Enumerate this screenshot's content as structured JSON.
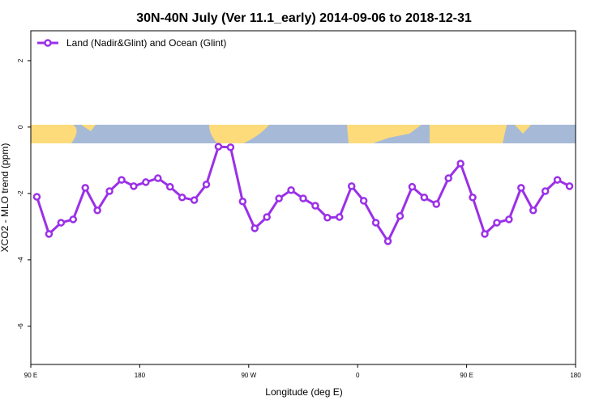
{
  "chart_data": {
    "type": "line",
    "title": "30N-40N July (Ver 11.1_early)   2014-09-06 to 2018-12-31",
    "x_label": "Longitude (deg E)",
    "y_label": "XCO2 - MLO trend (ppm)",
    "x": [
      95,
      105,
      115,
      125,
      135,
      145,
      155,
      165,
      175,
      185,
      195,
      205,
      215,
      225,
      235,
      245,
      255,
      265,
      275,
      285,
      295,
      305,
      315,
      325,
      335,
      345,
      355,
      365,
      375,
      385,
      395,
      405,
      415,
      425,
      435,
      445,
      455,
      465,
      475,
      485,
      495,
      505,
      515,
      525,
      535
    ],
    "series": [
      {
        "name": "Land (Nadir&Glint) and Ocean (Glint)",
        "color": "#9b30e8",
        "values": [
          -2.1,
          -3.22,
          -2.88,
          -2.78,
          -1.83,
          -2.51,
          -1.93,
          -1.59,
          -1.78,
          -1.66,
          -1.54,
          -1.8,
          -2.12,
          -2.2,
          -1.73,
          -0.59,
          -0.61,
          -2.24,
          -3.05,
          -2.71,
          -2.15,
          -1.9,
          -2.15,
          -2.37,
          -2.73,
          -2.71,
          -1.78,
          -2.22,
          -2.88,
          -3.44,
          -2.68,
          -1.8,
          -2.12,
          -2.32,
          -1.54,
          -1.1,
          -2.12,
          -3.22,
          -2.88,
          -2.78,
          -1.83,
          -2.51,
          -1.93,
          -1.59,
          -1.78
        ]
      }
    ],
    "xlim": [
      90,
      540
    ],
    "xticks": [
      {
        "value": 90,
        "label": "90 E"
      },
      {
        "value": 180,
        "label": "180"
      },
      {
        "value": 270,
        "label": "90 W"
      },
      {
        "value": 360,
        "label": "0"
      },
      {
        "value": 450,
        "label": "90 E"
      },
      {
        "value": 540,
        "label": "180"
      }
    ],
    "ylim": [
      -7.15,
      2.9
    ],
    "yticks": [
      2,
      0,
      -2,
      -4,
      -6
    ],
    "legend": "top-left"
  }
}
